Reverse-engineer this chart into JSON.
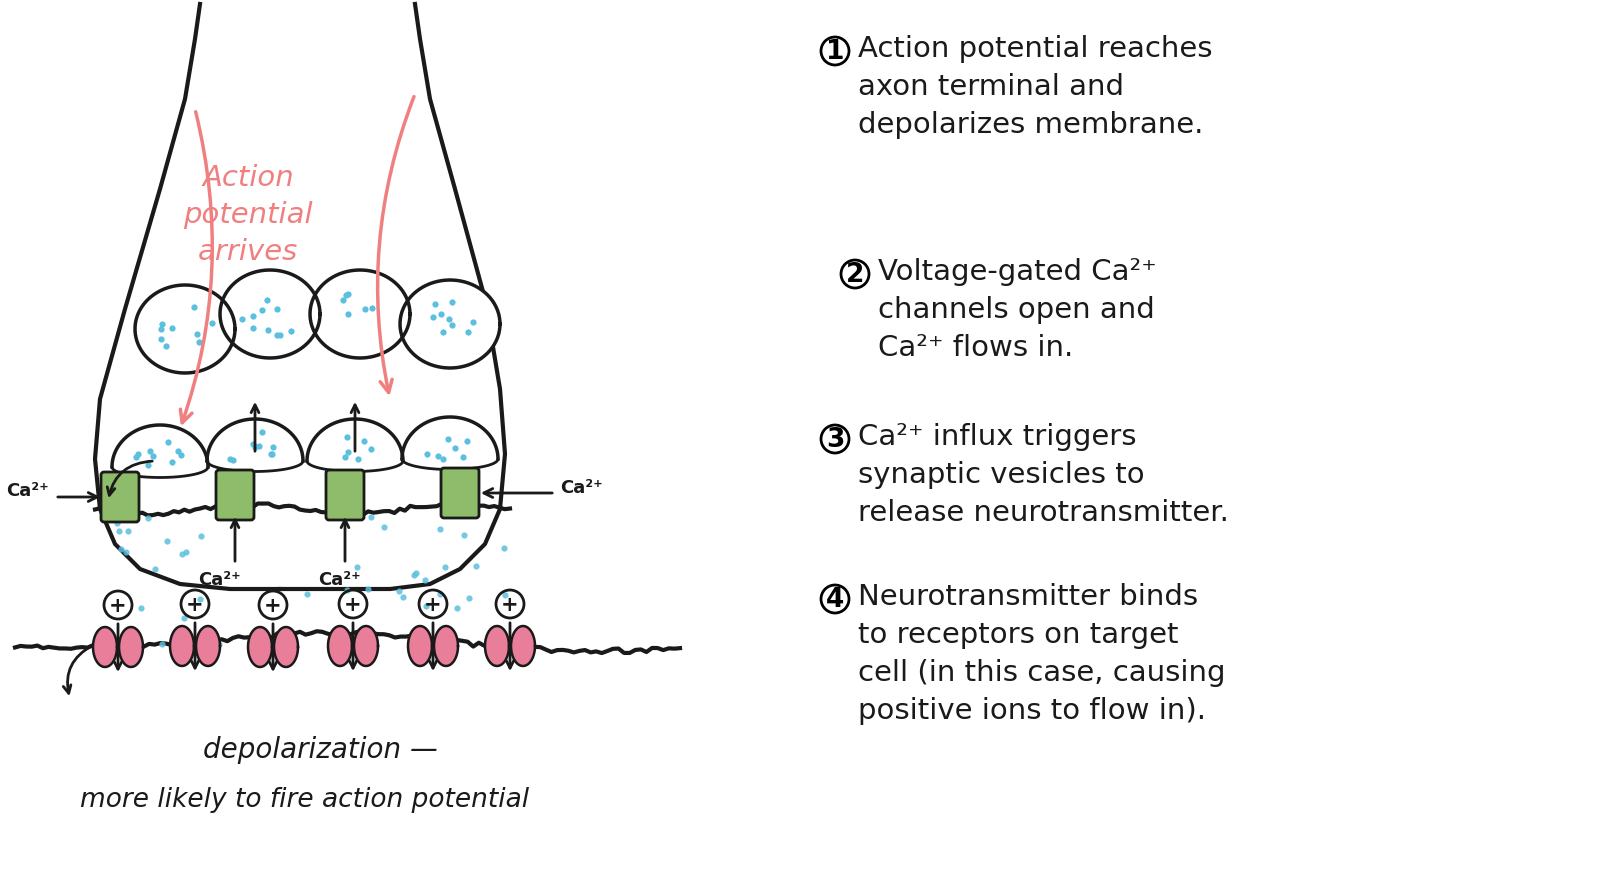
{
  "bg_color": "#ffffff",
  "axon_color": "#1a1a1a",
  "pink_arrow_color": "#f08080",
  "vesicle_dot_color": "#5bbfde",
  "green_channel_color": "#8fbc6a",
  "receptor_color": "#e87e9a",
  "text_color": "#1a1a1a",
  "pink_text_color": "#f08080",
  "action_potential_text": "Action\npotential\narrives",
  "bottom_text_1": "depolarization —",
  "bottom_text_2": "more likely to fire action potential"
}
